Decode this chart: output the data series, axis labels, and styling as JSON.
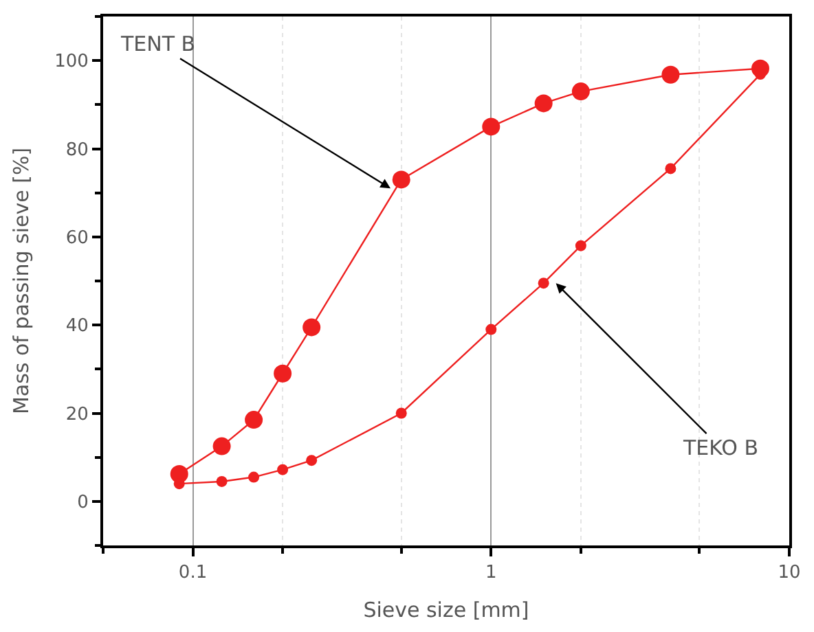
{
  "chart_data": {
    "type": "line",
    "xlabel": "Sieve size [mm]",
    "ylabel": "Mass of passing sieve [%]",
    "log": "x",
    "xlim": [
      0.05,
      10
    ],
    "xticks": [
      0.1,
      1,
      10
    ],
    "ylim": [
      -10,
      110
    ],
    "yticks": [
      0,
      20,
      40,
      60,
      80,
      100
    ],
    "grid": "x",
    "legend": false,
    "marker": "circle",
    "line_style": "solid",
    "series": [
      {
        "color": "#ee2020",
        "x": [
          0.09,
          0.125,
          0.16,
          0.2,
          0.25,
          0.5,
          1,
          1.5,
          2,
          4,
          8
        ],
        "values": [
          6.2,
          12.5,
          18.5,
          29,
          39.5,
          73,
          85,
          90.3,
          93,
          96.8,
          98.2
        ]
      },
      {
        "color": "#ee2020",
        "x": [
          0.09,
          0.125,
          0.16,
          0.2,
          0.25,
          0.5,
          1,
          1.5,
          2,
          4,
          8
        ],
        "values": [
          4,
          4.5,
          5.5,
          7.2,
          9.3,
          20,
          39,
          49.5,
          58,
          75.5,
          96.9
        ]
      }
    ],
    "annotations": [
      {
        "text": "TENT B",
        "x": 0.46,
        "y": 71
      },
      {
        "text": "TEKO B",
        "x": 1.65,
        "y": 49.5
      }
    ]
  }
}
